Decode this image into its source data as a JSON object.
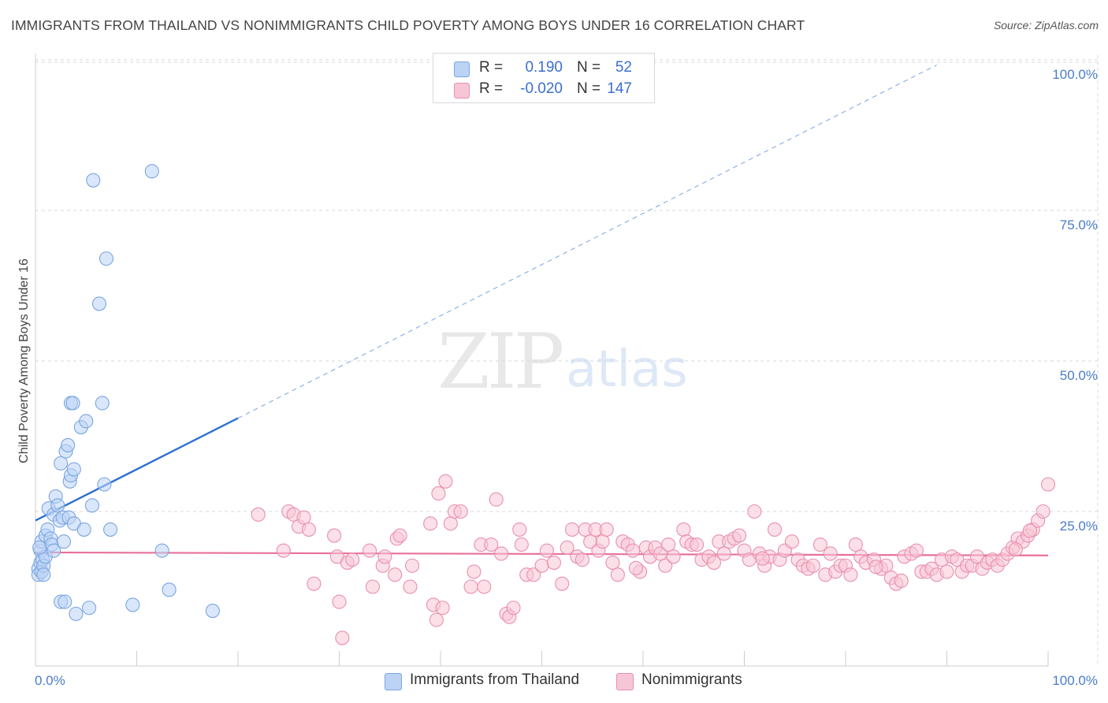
{
  "title": "IMMIGRANTS FROM THAILAND VS NONIMMIGRANTS CHILD POVERTY AMONG BOYS UNDER 16 CORRELATION CHART",
  "source": "Source: ZipAtlas.com",
  "watermark": {
    "zip": "ZIP",
    "atlas": "atlas"
  },
  "legend": {
    "series1": {
      "r_label": "R =",
      "r_value": "0.190",
      "n_label": "N =",
      "n_value": "52"
    },
    "series2": {
      "r_label": "R =",
      "r_value": "-0.020",
      "n_label": "N =",
      "n_value": "147"
    }
  },
  "bottom_legend": {
    "series1": "Immigrants from Thailand",
    "series2": "Nonimmigrants"
  },
  "colors": {
    "blue_fill": "#bcd3f5",
    "blue_stroke": "#7aa5e0",
    "blue_line": "#2e6fd0",
    "pink_fill": "#f7c6d6",
    "pink_stroke": "#e98fae",
    "pink_line": "#e8709a",
    "tick_text": "#4a7cc9",
    "grid": "#d9d9d9"
  },
  "chart_data": {
    "type": "scatter",
    "title": "IMMIGRANTS FROM THAILAND VS NONIMMIGRANTS CHILD POVERTY AMONG BOYS UNDER 16 CORRELATION CHART",
    "xlabel": "",
    "ylabel": "Child Poverty Among Boys Under 16",
    "xlim": [
      0,
      100
    ],
    "ylim": [
      0,
      100
    ],
    "x_tick_labels": [
      "0.0%",
      "100.0%"
    ],
    "y_ticks": [
      25,
      50,
      75,
      100
    ],
    "y_tick_labels": [
      "25.0%",
      "50.0%",
      "75.0%",
      "100.0%"
    ],
    "grid": true,
    "series": [
      {
        "name": "Immigrants from Thailand",
        "r": 0.19,
        "n": 52,
        "trend": {
          "x0": 0,
          "y0": 23.5,
          "x1": 20,
          "y1": 40.5,
          "dashed_to_x": 89
        },
        "points": [
          [
            0.3,
            15.5
          ],
          [
            0.3,
            14.5
          ],
          [
            0.5,
            16.5
          ],
          [
            0.5,
            18.5
          ],
          [
            0.6,
            15
          ],
          [
            0.6,
            20
          ],
          [
            0.7,
            17
          ],
          [
            0.8,
            16
          ],
          [
            0.8,
            14.5
          ],
          [
            1,
            17.5
          ],
          [
            1,
            21
          ],
          [
            1.2,
            22
          ],
          [
            1.3,
            25.5
          ],
          [
            1.5,
            20.5
          ],
          [
            1.6,
            19.5
          ],
          [
            1.8,
            18.5
          ],
          [
            1.8,
            24.5
          ],
          [
            2,
            27.5
          ],
          [
            2.2,
            26
          ],
          [
            2.4,
            23.5
          ],
          [
            2.5,
            33
          ],
          [
            2.5,
            10
          ],
          [
            2.7,
            24
          ],
          [
            2.8,
            20
          ],
          [
            2.9,
            10
          ],
          [
            3,
            35
          ],
          [
            3.2,
            36
          ],
          [
            3.3,
            24
          ],
          [
            3.4,
            30
          ],
          [
            3.5,
            31
          ],
          [
            3.5,
            43
          ],
          [
            3.7,
            43
          ],
          [
            3.8,
            32
          ],
          [
            3.8,
            23
          ],
          [
            4,
            8
          ],
          [
            4.5,
            39
          ],
          [
            4.8,
            22
          ],
          [
            5,
            40
          ],
          [
            5.3,
            9
          ],
          [
            5.6,
            26
          ],
          [
            5.7,
            80
          ],
          [
            6.3,
            59.5
          ],
          [
            6.6,
            43
          ],
          [
            6.8,
            29.5
          ],
          [
            7,
            67
          ],
          [
            7.4,
            22
          ],
          [
            9.6,
            9.5
          ],
          [
            11.5,
            81.5
          ],
          [
            12.5,
            18.5
          ],
          [
            13.2,
            12
          ],
          [
            17.5,
            8.5
          ],
          [
            0.4,
            19
          ]
        ]
      },
      {
        "name": "Nonimmigrants",
        "r": -0.02,
        "n": 147,
        "trend": {
          "x0": 0,
          "y0": 18.2,
          "x1": 100,
          "y1": 17.7
        },
        "points": [
          [
            22,
            24.5
          ],
          [
            24.5,
            18.5
          ],
          [
            25,
            25
          ],
          [
            25.5,
            24.5
          ],
          [
            26,
            22.5
          ],
          [
            26.5,
            24
          ],
          [
            27,
            22
          ],
          [
            27.5,
            13
          ],
          [
            29.5,
            21
          ],
          [
            29.8,
            17.5
          ],
          [
            30,
            10
          ],
          [
            30.3,
            4
          ],
          [
            30.8,
            16.5
          ],
          [
            31.3,
            17
          ],
          [
            33,
            18.5
          ],
          [
            33.3,
            12.5
          ],
          [
            34.3,
            16
          ],
          [
            34.5,
            17.5
          ],
          [
            35.5,
            14.5
          ],
          [
            35.7,
            20.5
          ],
          [
            36,
            21
          ],
          [
            37,
            12.5
          ],
          [
            37.2,
            16
          ],
          [
            39,
            23
          ],
          [
            39.3,
            9.5
          ],
          [
            39.6,
            7
          ],
          [
            39.8,
            28
          ],
          [
            40.2,
            9
          ],
          [
            40.5,
            30
          ],
          [
            41,
            23
          ],
          [
            41.4,
            25
          ],
          [
            42,
            25
          ],
          [
            43,
            12.5
          ],
          [
            43.3,
            15
          ],
          [
            44,
            19.5
          ],
          [
            44.3,
            12.5
          ],
          [
            45,
            19.5
          ],
          [
            45.5,
            27
          ],
          [
            46,
            18
          ],
          [
            46.5,
            8
          ],
          [
            46.8,
            7.5
          ],
          [
            47.2,
            9
          ],
          [
            47.8,
            22
          ],
          [
            48,
            19.5
          ],
          [
            48.5,
            14.5
          ],
          [
            49.2,
            14.5
          ],
          [
            50,
            16
          ],
          [
            50.5,
            18.5
          ],
          [
            51.2,
            16.5
          ],
          [
            52,
            13
          ],
          [
            52.5,
            19
          ],
          [
            53,
            22
          ],
          [
            53.5,
            17.5
          ],
          [
            54,
            17
          ],
          [
            54.3,
            22
          ],
          [
            54.8,
            20
          ],
          [
            55.3,
            22
          ],
          [
            55.6,
            18.5
          ],
          [
            56,
            20
          ],
          [
            56.4,
            22
          ],
          [
            57,
            16.5
          ],
          [
            57.5,
            14.5
          ],
          [
            58,
            20
          ],
          [
            58.5,
            19.5
          ],
          [
            59,
            18.5
          ],
          [
            59.7,
            15
          ],
          [
            60.3,
            19
          ],
          [
            60.7,
            17.5
          ],
          [
            61.2,
            19
          ],
          [
            61.7,
            18
          ],
          [
            62.2,
            16
          ],
          [
            62.5,
            19.5
          ],
          [
            63,
            17.5
          ],
          [
            64,
            22
          ],
          [
            64.3,
            20
          ],
          [
            64.8,
            19.5
          ],
          [
            65.3,
            19.5
          ],
          [
            65.8,
            17
          ],
          [
            66.5,
            17.5
          ],
          [
            67,
            16.5
          ],
          [
            67.5,
            20
          ],
          [
            68,
            18
          ],
          [
            68.5,
            20
          ],
          [
            69,
            20.5
          ],
          [
            69.5,
            21
          ],
          [
            70,
            18.5
          ],
          [
            70.5,
            17
          ],
          [
            71,
            25
          ],
          [
            71.5,
            18
          ],
          [
            72,
            16
          ],
          [
            72.5,
            17.5
          ],
          [
            73,
            22
          ],
          [
            73.5,
            17
          ],
          [
            74,
            18.5
          ],
          [
            74.7,
            20
          ],
          [
            75.3,
            17
          ],
          [
            75.8,
            16
          ],
          [
            76.3,
            15.5
          ],
          [
            76.8,
            16
          ],
          [
            77.5,
            19.5
          ],
          [
            78,
            14.5
          ],
          [
            78.5,
            18
          ],
          [
            79,
            15
          ],
          [
            79.5,
            16
          ],
          [
            80,
            16
          ],
          [
            80.5,
            14.5
          ],
          [
            81,
            19.5
          ],
          [
            81.5,
            17.5
          ],
          [
            82,
            16.5
          ],
          [
            82.8,
            17
          ],
          [
            83.5,
            15.5
          ],
          [
            84,
            16
          ],
          [
            84.5,
            14
          ],
          [
            85,
            13
          ],
          [
            85.5,
            13.5
          ],
          [
            85.8,
            17.5
          ],
          [
            86.5,
            18
          ],
          [
            87,
            18.5
          ],
          [
            87.5,
            15
          ],
          [
            88,
            15
          ],
          [
            88.5,
            15.5
          ],
          [
            89,
            14.5
          ],
          [
            89.5,
            17
          ],
          [
            90,
            15
          ],
          [
            90.5,
            17.5
          ],
          [
            91,
            17
          ],
          [
            91.5,
            15
          ],
          [
            92,
            16
          ],
          [
            92.5,
            16
          ],
          [
            93,
            17.5
          ],
          [
            93.5,
            15.5
          ],
          [
            94,
            16.5
          ],
          [
            94.5,
            17
          ],
          [
            95,
            16
          ],
          [
            95.5,
            17
          ],
          [
            96,
            18
          ],
          [
            96.5,
            19
          ],
          [
            97,
            20.5
          ],
          [
            97.5,
            20
          ],
          [
            98,
            21
          ],
          [
            98.5,
            22
          ],
          [
            99,
            23.5
          ],
          [
            99.5,
            25
          ],
          [
            100,
            29.5
          ],
          [
            98.2,
            21.8
          ],
          [
            96.8,
            18.7
          ],
          [
            59.3,
            15.6
          ],
          [
            71.8,
            17.2
          ],
          [
            83,
            15.8
          ]
        ]
      }
    ]
  }
}
